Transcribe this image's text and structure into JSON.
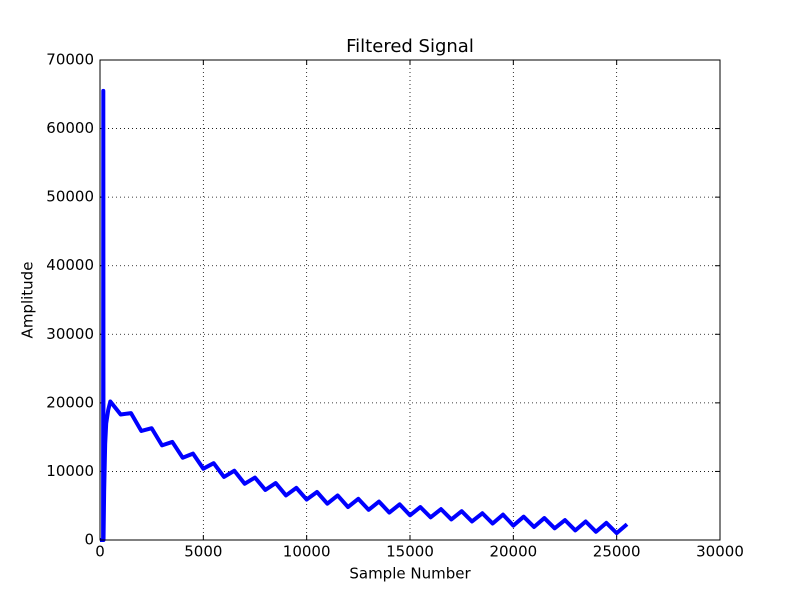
{
  "chart_data": {
    "type": "line",
    "title": "Filtered Signal",
    "x_label": "Sample Number",
    "y_label": "Amplitude",
    "xlim": [
      0,
      30000
    ],
    "ylim": [
      0,
      70000
    ],
    "xticks": [
      0,
      5000,
      10000,
      15000,
      20000,
      25000,
      30000
    ],
    "yticks": [
      0,
      10000,
      20000,
      30000,
      40000,
      50000,
      60000,
      70000
    ],
    "grid": true,
    "x": [
      0,
      100,
      150,
      160,
      170,
      200,
      250,
      300,
      400,
      500,
      1000,
      1500,
      2000,
      2500,
      3000,
      3500,
      4000,
      4500,
      5000,
      5500,
      6000,
      6500,
      7000,
      7500,
      8000,
      8500,
      9000,
      9500,
      10000,
      10500,
      11000,
      11500,
      12000,
      12500,
      13000,
      13500,
      14000,
      14500,
      15000,
      15500,
      16000,
      16500,
      17000,
      17500,
      18000,
      18500,
      19000,
      19500,
      20000,
      20500,
      21000,
      21500,
      22000,
      22500,
      23000,
      23500,
      24000,
      24500,
      25000,
      25500
    ],
    "series": [
      {
        "color": "#0000ff",
        "values": [
          0,
          0,
          0,
          65500,
          0,
          7000,
          14000,
          17000,
          19000,
          20200,
          18300,
          18500,
          15900,
          16300,
          13800,
          14300,
          12000,
          12600,
          10400,
          11200,
          9200,
          10100,
          8200,
          9100,
          7300,
          8300,
          6500,
          7600,
          5900,
          7000,
          5300,
          6500,
          4800,
          6000,
          4400,
          5600,
          4000,
          5200,
          3600,
          4800,
          3300,
          4500,
          3000,
          4200,
          2700,
          3900,
          2400,
          3700,
          2100,
          3400,
          1900,
          3200,
          1700,
          2900,
          1400,
          2700,
          1200,
          2500,
          1000,
          2300
        ]
      }
    ]
  }
}
